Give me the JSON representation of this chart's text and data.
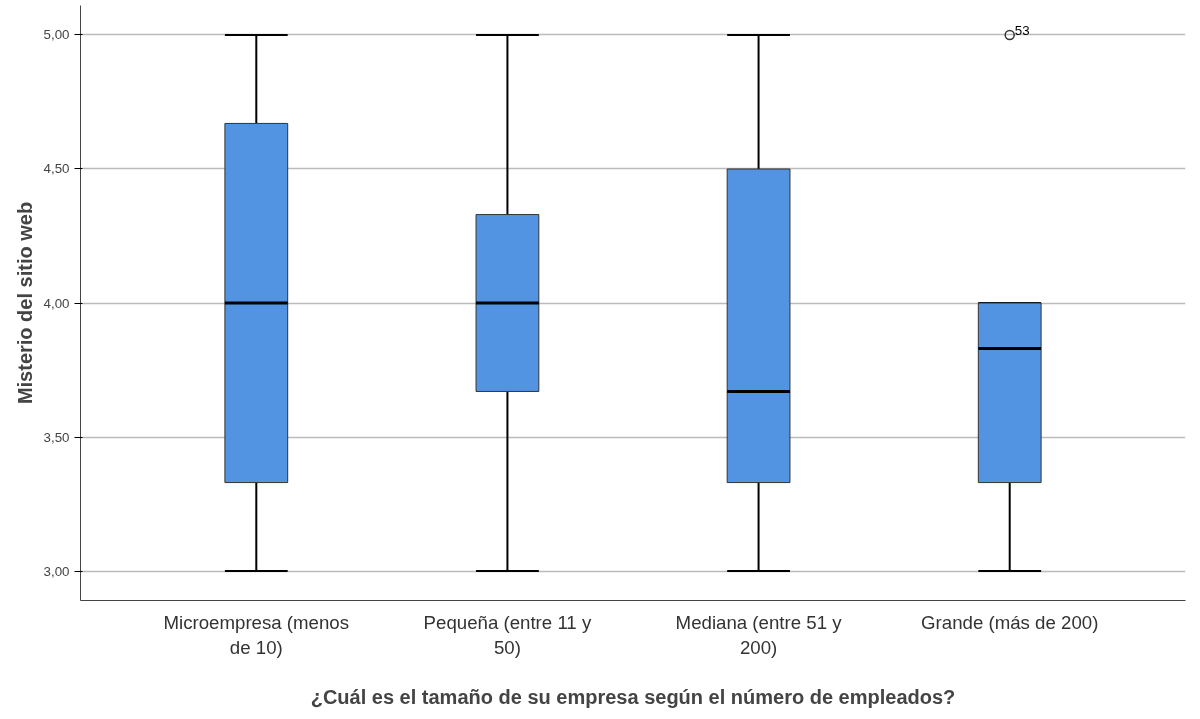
{
  "chart_data": {
    "type": "box",
    "xlabel": "¿Cuál es el tamaño de su empresa según el número de empleados?",
    "ylabel": "Misterio del sitio web",
    "categories": [
      "Microempresa (menos de 10)",
      "Pequeña (entre 11 y 50)",
      "Mediana (entre 51 y 200)",
      "Grande (más de 200)"
    ],
    "boxes": [
      {
        "low": 3.0,
        "q1": 3.33,
        "median": 4.0,
        "q3": 4.67,
        "high": 5.0
      },
      {
        "low": 3.0,
        "q1": 3.67,
        "median": 4.0,
        "q3": 4.33,
        "high": 5.0
      },
      {
        "low": 3.0,
        "q1": 3.33,
        "median": 3.67,
        "q3": 4.5,
        "high": 5.0
      },
      {
        "low": 3.0,
        "q1": 3.33,
        "median": 3.83,
        "q3": 4.0,
        "high": 4.0,
        "outliers": [
          5.0
        ]
      }
    ],
    "color": "#5294e2",
    "ylim": [
      2.89,
      5.11
    ],
    "yticks": [
      {
        "value": 3.0,
        "label": "3,00"
      },
      {
        "value": 3.5,
        "label": "3,50"
      },
      {
        "value": 4.0,
        "label": "4,00"
      },
      {
        "value": 4.5,
        "label": "4,50"
      },
      {
        "value": 5.0,
        "label": "5,00"
      }
    ],
    "grid": "y",
    "annotations": [
      "53"
    ]
  }
}
